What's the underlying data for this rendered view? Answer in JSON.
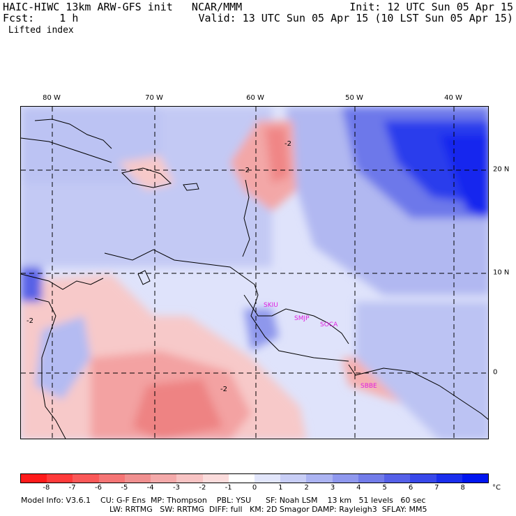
{
  "header": {
    "model": "HAIC-HIWC 13km ARW-GFS init   NCAR/MMM",
    "forecast": "Fcst:    1 h",
    "field": " Lifted index",
    "init": "Init: 12 UTC Sun 05 Apr 15",
    "valid": "Valid: 13 UTC Sun 05 Apr 15 (10 LST Sun 05 Apr 15)"
  },
  "map": {
    "longitude_labels": [
      "80 W",
      "70 W",
      "60 W",
      "50 W",
      "40 W"
    ],
    "latitude_labels": [
      "20 N",
      "10 N",
      "0"
    ],
    "contour_labels": [
      "-2",
      "-2",
      "-2",
      "-2"
    ],
    "stations": [
      "SKIU",
      "SMJP",
      "SOCA",
      "SBBE"
    ]
  },
  "colorbar": {
    "colors": [
      "#ff1a1a",
      "#ff3a3a",
      "#fa5858",
      "#f57575",
      "#f09090",
      "#f4aaaa",
      "#f8c4c4",
      "#fbdcdc",
      "#ffffff",
      "#e2e6fb",
      "#c8cef6",
      "#acb4f2",
      "#8f98ee",
      "#727ce9",
      "#5560e8",
      "#3848ea",
      "#1a2eed",
      "#0016f0"
    ],
    "ticks": [
      "-8",
      "-7",
      "-6",
      "-5",
      "-4",
      "-3",
      "-2",
      "-1",
      "0",
      "1",
      "2",
      "3",
      "4",
      "5",
      "6",
      "7",
      "8"
    ],
    "unit": "°C"
  },
  "footer": {
    "line1": "Model Info: V3.6.1    CU: G-F Ens  MP: Thompson    PBL: YSU      SF: Noah LSM    13 km   51 levels   60 sec",
    "line2": "LW: RRTMG   SW: RRTMG  DIFF: full   KM: 2D Smagor DAMP: Rayleigh3  SFLAY: MM5"
  }
}
